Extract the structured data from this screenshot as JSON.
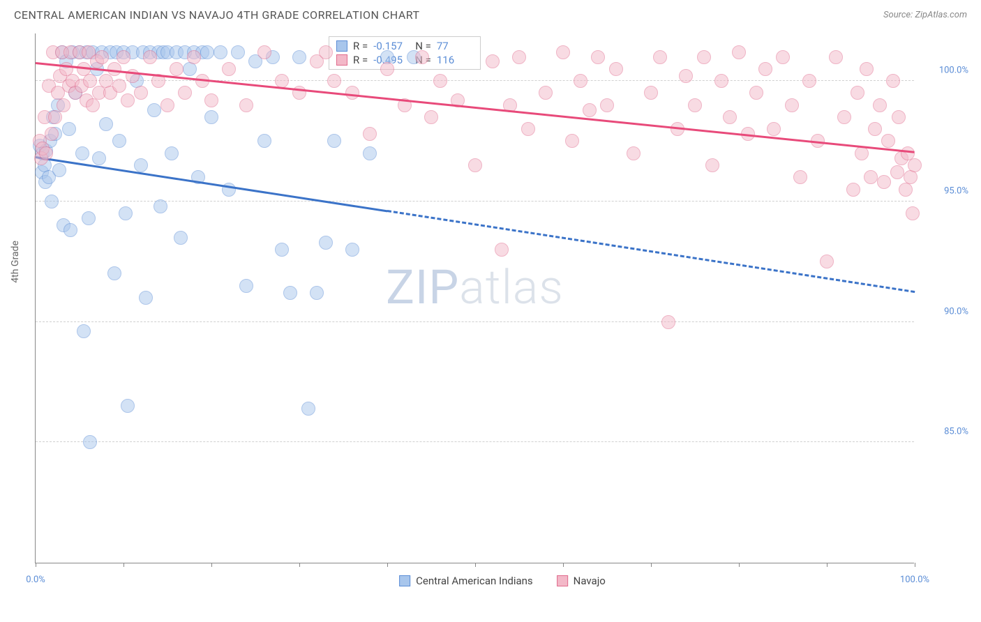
{
  "header": {
    "title": "CENTRAL AMERICAN INDIAN VS NAVAJO 4TH GRADE CORRELATION CHART",
    "source_prefix": "Source: ",
    "source": "ZipAtlas.com"
  },
  "watermark": {
    "zip": "ZIP",
    "atlas": "atlas"
  },
  "chart": {
    "type": "scatter",
    "ylabel": "4th Grade",
    "background_color": "#ffffff",
    "grid_color": "#d0d0d0",
    "axis_color": "#888888",
    "label_color": "#5b8dd6",
    "label_fontsize": 13,
    "title_fontsize": 16,
    "xlim": [
      0,
      100
    ],
    "ylim": [
      80,
      102
    ],
    "x_ticks": [
      0,
      10,
      20,
      30,
      40,
      50,
      60,
      70,
      80,
      90,
      100
    ],
    "x_tick_labels": {
      "0": "0.0%",
      "100": "100.0%"
    },
    "y_ticks": [
      85,
      90,
      95,
      100
    ],
    "y_tick_labels": {
      "85": "85.0%",
      "90": "90.0%",
      "95": "95.0%",
      "100": "100.0%"
    },
    "marker_radius": 10,
    "marker_opacity": 0.5,
    "series": [
      {
        "key": "cai",
        "label": "Central American Indians",
        "color_fill": "#a8c6ec",
        "color_stroke": "#5b8dd6",
        "r_label": "R =",
        "r_value": "-0.157",
        "n_label": "N =",
        "n_value": "77",
        "trend": {
          "x0": 0,
          "y0": 96.8,
          "x_solid_end": 40,
          "x1": 100,
          "y1": 91.2,
          "color": "#3b73c8",
          "width": 3,
          "dash": "6 5"
        },
        "points": [
          [
            0.5,
            97.3
          ],
          [
            0.7,
            96.2
          ],
          [
            0.8,
            97.0
          ],
          [
            1.0,
            96.5
          ],
          [
            1.1,
            95.8
          ],
          [
            1.2,
            97.1
          ],
          [
            1.5,
            96.0
          ],
          [
            1.7,
            97.5
          ],
          [
            1.8,
            95.0
          ],
          [
            2.0,
            98.5
          ],
          [
            2.2,
            97.8
          ],
          [
            2.5,
            99.0
          ],
          [
            2.7,
            96.3
          ],
          [
            3.0,
            101.2
          ],
          [
            3.2,
            94.0
          ],
          [
            3.5,
            100.8
          ],
          [
            3.8,
            98.0
          ],
          [
            4.0,
            93.8
          ],
          [
            4.2,
            101.2
          ],
          [
            4.5,
            99.5
          ],
          [
            5.0,
            101.2
          ],
          [
            5.3,
            97.0
          ],
          [
            5.5,
            89.6
          ],
          [
            5.8,
            101.2
          ],
          [
            6.0,
            94.3
          ],
          [
            6.2,
            85.0
          ],
          [
            6.5,
            101.2
          ],
          [
            7.0,
            100.5
          ],
          [
            7.2,
            96.8
          ],
          [
            7.5,
            101.2
          ],
          [
            8.0,
            98.2
          ],
          [
            8.5,
            101.2
          ],
          [
            9.0,
            92.0
          ],
          [
            9.2,
            101.2
          ],
          [
            9.5,
            97.5
          ],
          [
            10.0,
            101.2
          ],
          [
            10.2,
            94.5
          ],
          [
            10.5,
            86.5
          ],
          [
            11.0,
            101.2
          ],
          [
            11.5,
            100.0
          ],
          [
            12.0,
            96.5
          ],
          [
            12.2,
            101.2
          ],
          [
            12.5,
            91.0
          ],
          [
            13.0,
            101.2
          ],
          [
            13.5,
            98.8
          ],
          [
            14.0,
            101.2
          ],
          [
            14.2,
            94.8
          ],
          [
            14.5,
            101.2
          ],
          [
            15.0,
            101.2
          ],
          [
            15.5,
            97.0
          ],
          [
            16.0,
            101.2
          ],
          [
            16.5,
            93.5
          ],
          [
            17.0,
            101.2
          ],
          [
            17.5,
            100.5
          ],
          [
            18.0,
            101.2
          ],
          [
            18.5,
            96.0
          ],
          [
            19.0,
            101.2
          ],
          [
            19.5,
            101.2
          ],
          [
            20.0,
            98.5
          ],
          [
            21.0,
            101.2
          ],
          [
            22.0,
            95.5
          ],
          [
            23.0,
            101.2
          ],
          [
            24.0,
            91.5
          ],
          [
            25.0,
            100.8
          ],
          [
            26.0,
            97.5
          ],
          [
            27.0,
            101.0
          ],
          [
            28.0,
            93.0
          ],
          [
            29.0,
            91.2
          ],
          [
            30.0,
            101.0
          ],
          [
            31.0,
            86.4
          ],
          [
            32.0,
            91.2
          ],
          [
            33.0,
            93.3
          ],
          [
            34.0,
            97.5
          ],
          [
            36.0,
            93.0
          ],
          [
            38.0,
            97.0
          ],
          [
            40.0,
            101.0
          ],
          [
            43.0,
            101.0
          ]
        ]
      },
      {
        "key": "navajo",
        "label": "Navajo",
        "color_fill": "#f3b8c8",
        "color_stroke": "#e06a8c",
        "r_label": "R =",
        "r_value": "-0.495",
        "n_label": "N =",
        "n_value": "116",
        "trend": {
          "x0": 0,
          "y0": 100.7,
          "x_solid_end": 100,
          "x1": 100,
          "y1": 97.0,
          "color": "#e84a7a",
          "width": 3,
          "dash": ""
        },
        "points": [
          [
            0.5,
            97.5
          ],
          [
            0.6,
            96.8
          ],
          [
            0.8,
            97.2
          ],
          [
            1.0,
            98.5
          ],
          [
            1.2,
            97.0
          ],
          [
            1.5,
            99.8
          ],
          [
            1.8,
            97.8
          ],
          [
            2.0,
            101.2
          ],
          [
            2.2,
            98.5
          ],
          [
            2.5,
            99.5
          ],
          [
            2.8,
            100.2
          ],
          [
            3.0,
            101.2
          ],
          [
            3.2,
            99.0
          ],
          [
            3.5,
            100.5
          ],
          [
            3.8,
            99.8
          ],
          [
            4.0,
            101.2
          ],
          [
            4.2,
            100.0
          ],
          [
            4.5,
            99.5
          ],
          [
            5.0,
            101.2
          ],
          [
            5.2,
            99.8
          ],
          [
            5.5,
            100.5
          ],
          [
            5.8,
            99.2
          ],
          [
            6.0,
            101.2
          ],
          [
            6.2,
            100.0
          ],
          [
            6.5,
            99.0
          ],
          [
            7.0,
            100.8
          ],
          [
            7.2,
            99.5
          ],
          [
            7.5,
            101.0
          ],
          [
            8.0,
            100.0
          ],
          [
            8.5,
            99.5
          ],
          [
            9.0,
            100.5
          ],
          [
            9.5,
            99.8
          ],
          [
            10.0,
            101.0
          ],
          [
            10.5,
            99.2
          ],
          [
            11.0,
            100.2
          ],
          [
            12.0,
            99.5
          ],
          [
            13.0,
            101.0
          ],
          [
            14.0,
            100.0
          ],
          [
            15.0,
            99.0
          ],
          [
            16.0,
            100.5
          ],
          [
            17.0,
            99.5
          ],
          [
            18.0,
            101.0
          ],
          [
            19.0,
            100.0
          ],
          [
            20.0,
            99.2
          ],
          [
            22.0,
            100.5
          ],
          [
            24.0,
            99.0
          ],
          [
            26.0,
            101.2
          ],
          [
            28.0,
            100.0
          ],
          [
            30.0,
            99.5
          ],
          [
            32.0,
            100.8
          ],
          [
            33.0,
            101.2
          ],
          [
            34.0,
            100.0
          ],
          [
            36.0,
            99.5
          ],
          [
            38.0,
            97.8
          ],
          [
            40.0,
            100.5
          ],
          [
            42.0,
            99.0
          ],
          [
            44.0,
            101.0
          ],
          [
            45.0,
            98.5
          ],
          [
            46.0,
            100.0
          ],
          [
            48.0,
            99.2
          ],
          [
            50.0,
            96.5
          ],
          [
            52.0,
            100.8
          ],
          [
            53.0,
            93.0
          ],
          [
            54.0,
            99.0
          ],
          [
            55.0,
            101.0
          ],
          [
            56.0,
            98.0
          ],
          [
            58.0,
            99.5
          ],
          [
            60.0,
            101.2
          ],
          [
            61.0,
            97.5
          ],
          [
            62.0,
            100.0
          ],
          [
            63.0,
            98.8
          ],
          [
            64.0,
            101.0
          ],
          [
            65.0,
            99.0
          ],
          [
            66.0,
            100.5
          ],
          [
            68.0,
            97.0
          ],
          [
            70.0,
            99.5
          ],
          [
            71.0,
            101.0
          ],
          [
            72.0,
            90.0
          ],
          [
            73.0,
            98.0
          ],
          [
            74.0,
            100.2
          ],
          [
            75.0,
            99.0
          ],
          [
            76.0,
            101.0
          ],
          [
            77.0,
            96.5
          ],
          [
            78.0,
            100.0
          ],
          [
            79.0,
            98.5
          ],
          [
            80.0,
            101.2
          ],
          [
            81.0,
            97.8
          ],
          [
            82.0,
            99.5
          ],
          [
            83.0,
            100.5
          ],
          [
            84.0,
            98.0
          ],
          [
            85.0,
            101.0
          ],
          [
            86.0,
            99.0
          ],
          [
            87.0,
            96.0
          ],
          [
            88.0,
            100.0
          ],
          [
            89.0,
            97.5
          ],
          [
            90.0,
            92.5
          ],
          [
            91.0,
            101.0
          ],
          [
            92.0,
            98.5
          ],
          [
            93.0,
            95.5
          ],
          [
            93.5,
            99.5
          ],
          [
            94.0,
            97.0
          ],
          [
            94.5,
            100.5
          ],
          [
            95.0,
            96.0
          ],
          [
            95.5,
            98.0
          ],
          [
            96.0,
            99.0
          ],
          [
            96.5,
            95.8
          ],
          [
            97.0,
            97.5
          ],
          [
            97.5,
            100.0
          ],
          [
            98.0,
            96.2
          ],
          [
            98.2,
            98.5
          ],
          [
            98.5,
            96.8
          ],
          [
            99.0,
            95.5
          ],
          [
            99.2,
            97.0
          ],
          [
            99.5,
            96.0
          ],
          [
            99.8,
            94.5
          ],
          [
            100.0,
            96.5
          ]
        ]
      }
    ]
  }
}
